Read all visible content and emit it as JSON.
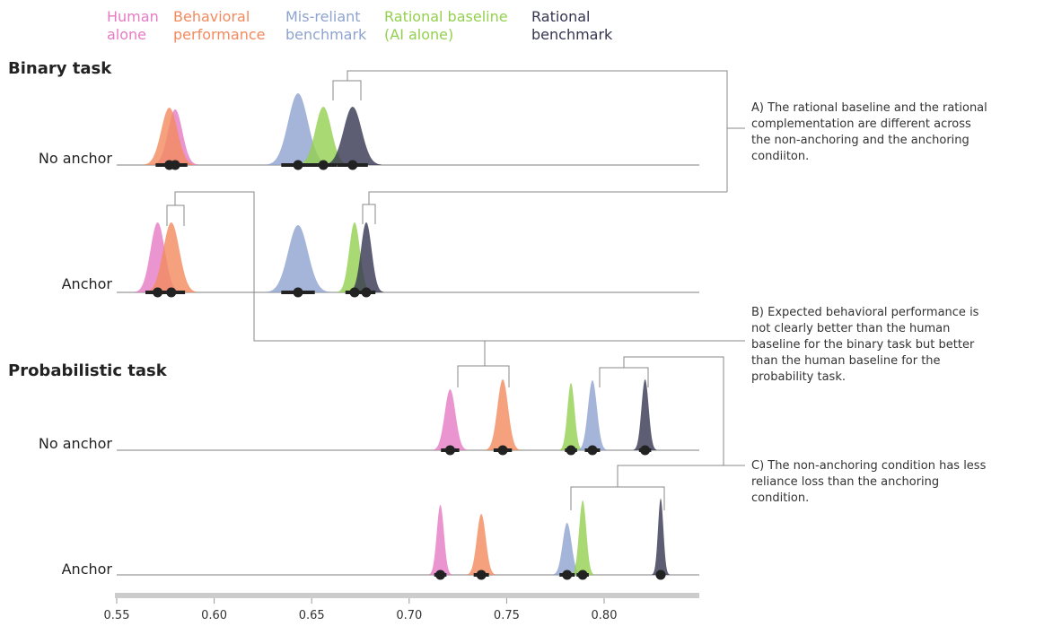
{
  "chart_data": {
    "type": "density",
    "legend": [
      {
        "key": "human",
        "lines": [
          "Human",
          "alone"
        ],
        "color": "#E57BC3"
      },
      {
        "key": "behavioral",
        "lines": [
          "Behavioral",
          "performance"
        ],
        "color": "#F28A5E"
      },
      {
        "key": "misreliant",
        "lines": [
          "Mis-reliant",
          "benchmark"
        ],
        "color": "#8FA3CF"
      },
      {
        "key": "rational_baseline",
        "lines": [
          "Rational baseline",
          "(AI alone)"
        ],
        "color": "#94D04F"
      },
      {
        "key": "rational_benchmark",
        "lines": [
          "Rational",
          "benchmark"
        ],
        "color": "#353550"
      }
    ],
    "panels": [
      {
        "title": "Binary task",
        "rows": [
          {
            "label": "No anchor",
            "points": [
              {
                "series": "human",
                "mean": 0.58
              },
              {
                "series": "behavioral",
                "mean": 0.577
              },
              {
                "series": "misreliant",
                "mean": 0.643
              },
              {
                "series": "rational_baseline",
                "mean": 0.656
              },
              {
                "series": "rational_benchmark",
                "mean": 0.671
              }
            ]
          },
          {
            "label": "Anchor",
            "points": [
              {
                "series": "human",
                "mean": 0.571
              },
              {
                "series": "behavioral",
                "mean": 0.578
              },
              {
                "series": "misreliant",
                "mean": 0.643
              },
              {
                "series": "rational_baseline",
                "mean": 0.672
              },
              {
                "series": "rational_benchmark",
                "mean": 0.678
              }
            ]
          }
        ]
      },
      {
        "title": "Probabilistic task",
        "rows": [
          {
            "label": "No anchor",
            "points": [
              {
                "series": "human",
                "mean": 0.721
              },
              {
                "series": "behavioral",
                "mean": 0.748
              },
              {
                "series": "rational_baseline",
                "mean": 0.783
              },
              {
                "series": "misreliant",
                "mean": 0.794
              },
              {
                "series": "rational_benchmark",
                "mean": 0.821
              }
            ]
          },
          {
            "label": "Anchor",
            "points": [
              {
                "series": "human",
                "mean": 0.716
              },
              {
                "series": "behavioral",
                "mean": 0.737
              },
              {
                "series": "misreliant",
                "mean": 0.781
              },
              {
                "series": "rational_baseline",
                "mean": 0.789
              },
              {
                "series": "rational_benchmark",
                "mean": 0.829
              }
            ]
          }
        ]
      }
    ],
    "x_axis": {
      "ticks": [
        0.55,
        0.6,
        0.65,
        0.7,
        0.75,
        0.8
      ],
      "tick_labels": [
        "0.55",
        "0.60",
        "0.65",
        "0.70",
        "0.75",
        "0.80"
      ],
      "range": [
        0.55,
        0.85
      ]
    },
    "annotations": [
      {
        "key": "A",
        "lines": [
          "A) The rational baseline and the rational",
          "complementation are different across",
          "the non-anchoring and the anchoring",
          "condiiton."
        ]
      },
      {
        "key": "B",
        "lines": [
          "B) Expected behavioral performance is",
          "not clearly better than the human",
          "baseline for the binary task but better",
          "than the human baseline for the",
          "probability task."
        ]
      },
      {
        "key": "C",
        "lines": [
          "C) The non-anchoring condition has less",
          "reliance loss than the anchoring",
          "condition."
        ]
      }
    ]
  }
}
